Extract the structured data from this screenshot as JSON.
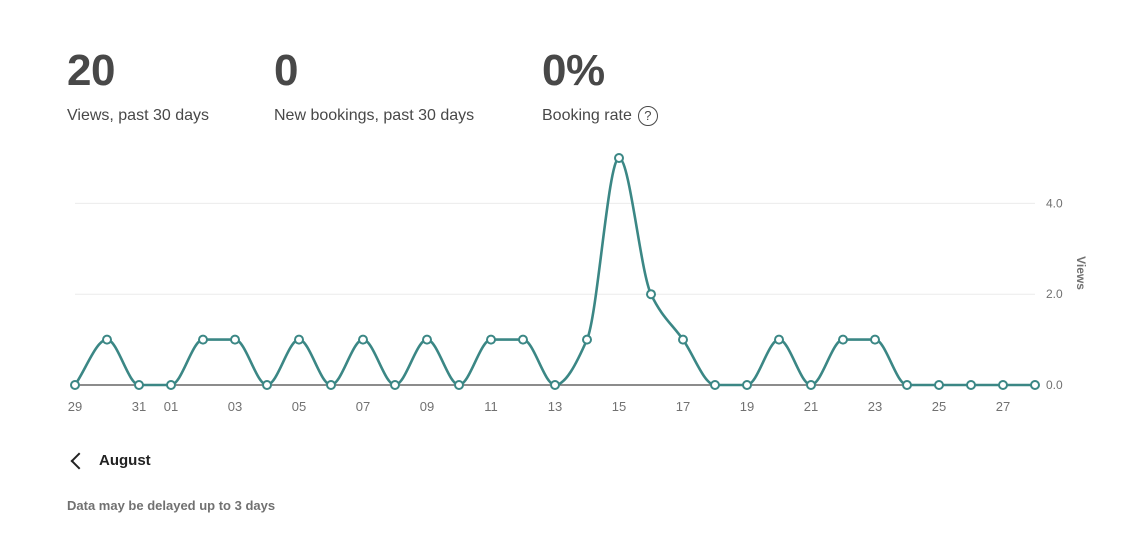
{
  "stats": [
    {
      "value": "20",
      "label": "Views, past 30 days"
    },
    {
      "value": "0",
      "label": "New bookings, past 30 days"
    },
    {
      "value": "0%",
      "label": "Booking rate"
    }
  ],
  "help_icon": "question-circle-icon",
  "chart_data": {
    "type": "line",
    "x": [
      "29",
      "30",
      "31",
      "01",
      "02",
      "03",
      "04",
      "05",
      "06",
      "07",
      "08",
      "09",
      "10",
      "11",
      "12",
      "13",
      "14",
      "15",
      "16",
      "17",
      "18",
      "19",
      "20",
      "21",
      "22",
      "23",
      "24",
      "25",
      "26",
      "27",
      "28"
    ],
    "x_tick_labels": [
      "29",
      "31",
      "01",
      "03",
      "05",
      "07",
      "09",
      "11",
      "13",
      "15",
      "17",
      "19",
      "21",
      "23",
      "25",
      "27"
    ],
    "series": [
      {
        "values": [
          0,
          1,
          0,
          0,
          1,
          1,
          0,
          1,
          0,
          1,
          0,
          1,
          0,
          1,
          1,
          0,
          1,
          5,
          2,
          1,
          0,
          0,
          1,
          0,
          1,
          1,
          0,
          0,
          0,
          0,
          0
        ]
      }
    ],
    "ylabel": "Views",
    "y_ticks": [
      "0.0",
      "2.0",
      "4.0"
    ],
    "ylim": [
      0,
      5
    ],
    "grid": true,
    "colors": {
      "line": "#3b8785",
      "grid": "#ebebeb",
      "axis": "#484848",
      "tick": "#717171"
    }
  },
  "nav": {
    "month_label": "August",
    "prev_icon": "chevron-left-icon"
  },
  "footnote": "Data may be delayed up to 3 days"
}
